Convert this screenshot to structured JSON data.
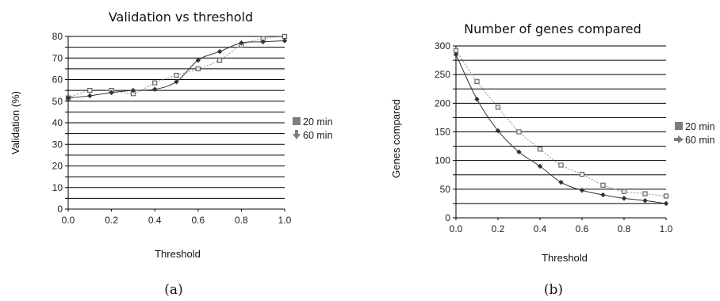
{
  "chart_data": [
    {
      "type": "line",
      "title": "Validation vs threshold",
      "xlabel": "Threshold",
      "ylabel": "Validation (%)",
      "caption": "(a)",
      "xlim": [
        0,
        1
      ],
      "ylim": [
        0,
        80
      ],
      "xticks": [
        "0.0",
        "0.2",
        "0.4",
        "0.6",
        "0.8",
        "1.0"
      ],
      "yticks": [
        "0",
        "10",
        "20",
        "30",
        "40",
        "50",
        "60",
        "70",
        "80"
      ],
      "grid": true,
      "legend_position": "right",
      "series": [
        {
          "name": "20 min",
          "marker": "square",
          "x": [
            0.0,
            0.1,
            0.2,
            0.3,
            0.4,
            0.5,
            0.6,
            0.7,
            0.8,
            0.9,
            1.0
          ],
          "values": [
            51.5,
            55,
            55,
            53.5,
            58.5,
            62,
            65,
            69,
            76,
            79,
            80
          ]
        },
        {
          "name": "60 min",
          "marker": "arrow-down",
          "x": [
            0.0,
            0.1,
            0.2,
            0.3,
            0.4,
            0.5,
            0.6,
            0.7,
            0.8,
            0.9,
            1.0
          ],
          "values": [
            51.5,
            52.5,
            54,
            55,
            55.5,
            59,
            69,
            73,
            77,
            77.5,
            78
          ]
        }
      ]
    },
    {
      "type": "line",
      "title": "Number of genes compared",
      "xlabel": "Threshold",
      "ylabel": "Genes compared",
      "caption": "(b)",
      "xlim": [
        0,
        1
      ],
      "ylim": [
        0,
        300
      ],
      "xticks": [
        "0.0",
        "0.2",
        "0.4",
        "0.6",
        "0.8",
        "1.0"
      ],
      "yticks": [
        "0",
        "50",
        "100",
        "150",
        "200",
        "250",
        "300"
      ],
      "grid": true,
      "legend_position": "right",
      "series": [
        {
          "name": "20 min",
          "marker": "square",
          "x": [
            0.0,
            0.1,
            0.2,
            0.3,
            0.4,
            0.5,
            0.6,
            0.7,
            0.8,
            0.9,
            1.0
          ],
          "values": [
            292,
            238,
            193,
            150,
            120,
            92,
            76,
            57,
            46,
            42,
            38
          ]
        },
        {
          "name": "60 min",
          "marker": "arrow-right",
          "x": [
            0.0,
            0.1,
            0.2,
            0.3,
            0.4,
            0.5,
            0.6,
            0.7,
            0.8,
            0.9,
            1.0
          ],
          "values": [
            285,
            207,
            152,
            115,
            90,
            62,
            48,
            40,
            34,
            30,
            25
          ]
        }
      ]
    }
  ]
}
